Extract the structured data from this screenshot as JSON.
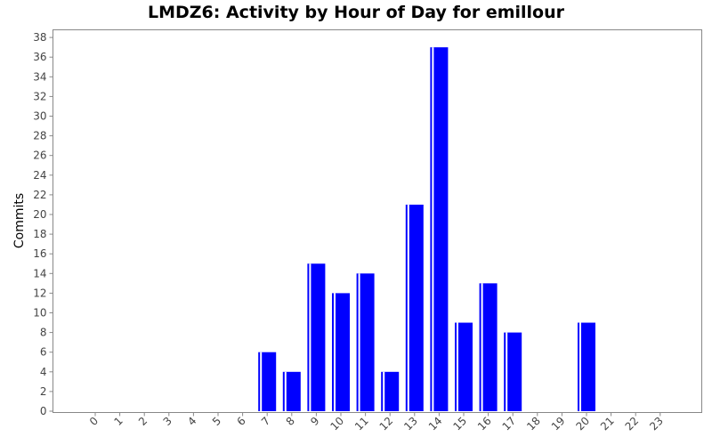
{
  "chart_data": {
    "type": "bar",
    "title": "LMDZ6: Activity by Hour of Day for emillour",
    "xlabel": "",
    "ylabel": "Commits",
    "ylim": [
      0,
      39
    ],
    "yticks": [
      0,
      2,
      4,
      6,
      8,
      10,
      12,
      14,
      16,
      18,
      20,
      22,
      24,
      26,
      28,
      30,
      32,
      34,
      36,
      38
    ],
    "categories": [
      "0",
      "1",
      "2",
      "3",
      "4",
      "5",
      "6",
      "7",
      "8",
      "9",
      "10",
      "11",
      "12",
      "13",
      "14",
      "15",
      "16",
      "17",
      "18",
      "19",
      "20",
      "21",
      "22",
      "23"
    ],
    "series": [
      {
        "values": [
          0,
          0,
          0,
          0,
          0,
          0,
          0,
          6,
          4,
          15,
          12,
          14,
          4,
          21,
          37,
          9,
          13,
          8,
          0,
          0,
          9,
          0,
          0,
          0
        ]
      }
    ],
    "bar_color": "#0000ff",
    "bar_highlight_color": "#ffffff",
    "grid": false,
    "legend": "none"
  }
}
